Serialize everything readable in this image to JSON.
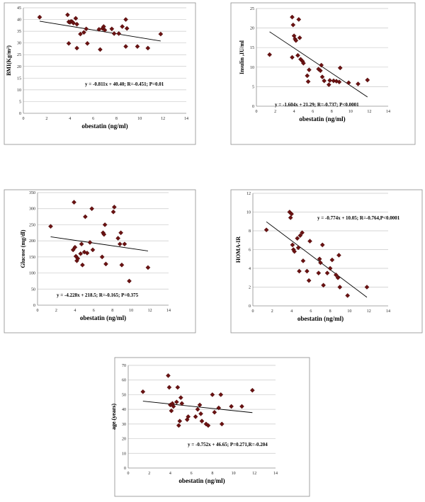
{
  "style": {
    "marker_color": "#6b1212",
    "trend_color": "#000000",
    "grid_color": "#c9c9c9"
  },
  "chart_data": [
    {
      "type": "scatter",
      "xlabel": "obestatin (ng/ml)",
      "ylabel": "BMI(Kg/m²)",
      "xlim": [
        0,
        14
      ],
      "ylim": [
        0,
        45
      ],
      "xticks": [
        "0",
        "2",
        "4",
        "6",
        "8",
        "10",
        "12",
        "14"
      ],
      "yticks": [
        "0",
        "5",
        "10",
        "15",
        "20",
        "25",
        "30",
        "35",
        "40",
        "45"
      ],
      "trendline": {
        "slope": -0.811,
        "intercept": 40.4
      },
      "equation": "y = -0.811x + 40.40; R=-0.451; P=0.01",
      "points": [
        [
          1.4,
          41
        ],
        [
          3.8,
          42
        ],
        [
          3.9,
          39
        ],
        [
          4.0,
          38.8
        ],
        [
          4.1,
          39.2
        ],
        [
          4.2,
          39
        ],
        [
          4.3,
          38.5
        ],
        [
          4.5,
          40.5
        ],
        [
          4.6,
          38
        ],
        [
          3.9,
          29.8
        ],
        [
          4.6,
          27.8
        ],
        [
          4.9,
          33.8
        ],
        [
          5.2,
          34.5
        ],
        [
          5.4,
          36
        ],
        [
          5.5,
          29.8
        ],
        [
          6.5,
          35.8
        ],
        [
          6.6,
          27.2
        ],
        [
          6.8,
          36.2
        ],
        [
          6.9,
          37
        ],
        [
          7.0,
          35.5
        ],
        [
          7.6,
          36
        ],
        [
          7.8,
          34
        ],
        [
          8.2,
          34
        ],
        [
          8.5,
          37
        ],
        [
          8.8,
          40
        ],
        [
          8.9,
          36.2
        ],
        [
          8.8,
          28.5
        ],
        [
          9.8,
          28.5
        ],
        [
          10.7,
          27.8
        ],
        [
          11.8,
          33.8
        ]
      ]
    },
    {
      "type": "scatter",
      "xlabel": "obestatin (ng/ml)",
      "ylabel": "Insulin ,IU/ml",
      "xlim": [
        0,
        14
      ],
      "ylim": [
        0,
        25
      ],
      "xticks": [
        "0",
        "2",
        "4",
        "6",
        "8",
        "10",
        "12",
        "14"
      ],
      "yticks": [
        "0",
        "5",
        "10",
        "15",
        "20",
        "25"
      ],
      "trendline": {
        "slope": -1.604,
        "intercept": 21.29
      },
      "equation": "y = -1.604x + 21.29; R=-0.737; P<0.0001",
      "points": [
        [
          1.4,
          13.2
        ],
        [
          3.8,
          22.8
        ],
        [
          3.9,
          20.8
        ],
        [
          4.0,
          18
        ],
        [
          4.1,
          17.2
        ],
        [
          4.2,
          16.8
        ],
        [
          3.8,
          12.5
        ],
        [
          4.4,
          13
        ],
        [
          4.5,
          22.2
        ],
        [
          4.6,
          17.5
        ],
        [
          4.7,
          12
        ],
        [
          4.9,
          11.5
        ],
        [
          5.0,
          11
        ],
        [
          5.4,
          7.8
        ],
        [
          5.5,
          6.3
        ],
        [
          5.6,
          9.3
        ],
        [
          6.6,
          9.5
        ],
        [
          6.8,
          9.1
        ],
        [
          6.9,
          10.5
        ],
        [
          7.0,
          7.5
        ],
        [
          7.2,
          6.5
        ],
        [
          7.7,
          5.5
        ],
        [
          7.8,
          6.6
        ],
        [
          8.2,
          6.5
        ],
        [
          8.5,
          6.4
        ],
        [
          8.8,
          6.2
        ],
        [
          8.9,
          9.8
        ],
        [
          9.8,
          6
        ],
        [
          10.8,
          5.7
        ],
        [
          11.8,
          6.7
        ]
      ]
    },
    {
      "type": "scatter",
      "xlabel": "obestatin (ng/ml)",
      "ylabel": "Glucose (mg/dl)",
      "xlim": [
        0,
        14
      ],
      "ylim": [
        0,
        350
      ],
      "xticks": [
        "0",
        "2",
        "4",
        "6",
        "8",
        "10",
        "12",
        "14"
      ],
      "yticks": [
        "0",
        "50",
        "100",
        "150",
        "200",
        "250",
        "300",
        "350"
      ],
      "trendline": {
        "slope": -4.228,
        "intercept": 218.5
      },
      "equation": "y = -4.228x + 218.5; R=-0.165; P=0.375",
      "points": [
        [
          1.4,
          245
        ],
        [
          3.8,
          172
        ],
        [
          3.9,
          320
        ],
        [
          4.0,
          180
        ],
        [
          4.1,
          152
        ],
        [
          4.2,
          138
        ],
        [
          4.3,
          145
        ],
        [
          4.6,
          160
        ],
        [
          4.7,
          190
        ],
        [
          4.8,
          125
        ],
        [
          5.0,
          165
        ],
        [
          5.1,
          275
        ],
        [
          5.3,
          162
        ],
        [
          5.6,
          195
        ],
        [
          5.8,
          300
        ],
        [
          5.9,
          172
        ],
        [
          6.9,
          150
        ],
        [
          7.0,
          225
        ],
        [
          7.1,
          220
        ],
        [
          7.2,
          250
        ],
        [
          7.3,
          128
        ],
        [
          8.1,
          290
        ],
        [
          8.2,
          305
        ],
        [
          8.6,
          208
        ],
        [
          8.8,
          190
        ],
        [
          8.9,
          225
        ],
        [
          9.0,
          125
        ],
        [
          9.3,
          190
        ],
        [
          9.8,
          75
        ],
        [
          11.8,
          117
        ]
      ]
    },
    {
      "type": "scatter",
      "xlabel": "obestatin (ng/ml)",
      "ylabel": "HOMA-IR",
      "xlim": [
        0,
        14
      ],
      "ylim": [
        0,
        12
      ],
      "xticks": [
        "0",
        "2",
        "4",
        "6",
        "8",
        "10",
        "12",
        "14"
      ],
      "yticks": [
        "0",
        "2",
        "4",
        "6",
        "8",
        "10",
        "12"
      ],
      "trendline": {
        "slope": -0.774,
        "intercept": 10.05
      },
      "equation": "y = -0.774x + 10.05; R=-0.764,P<0.0001",
      "points": [
        [
          1.4,
          8.1
        ],
        [
          3.8,
          10
        ],
        [
          3.9,
          9.4
        ],
        [
          4.0,
          9.8
        ],
        [
          4.1,
          6.5
        ],
        [
          4.2,
          6
        ],
        [
          4.3,
          5.8
        ],
        [
          4.6,
          7.2
        ],
        [
          4.7,
          6.2
        ],
        [
          4.8,
          3.7
        ],
        [
          4.9,
          7.5
        ],
        [
          5.1,
          7.8
        ],
        [
          5.2,
          4.8
        ],
        [
          5.6,
          3.7
        ],
        [
          5.8,
          2.7
        ],
        [
          5.9,
          6.9
        ],
        [
          6.8,
          3.5
        ],
        [
          6.9,
          5
        ],
        [
          7.0,
          4.6
        ],
        [
          7.2,
          6.5
        ],
        [
          7.3,
          2.2
        ],
        [
          7.7,
          3.5
        ],
        [
          8.0,
          4
        ],
        [
          8.2,
          4.9
        ],
        [
          8.6,
          3.3
        ],
        [
          8.8,
          3
        ],
        [
          8.9,
          5.4
        ],
        [
          9.0,
          2
        ],
        [
          9.8,
          1.1
        ],
        [
          11.8,
          2
        ]
      ]
    },
    {
      "type": "scatter",
      "xlabel": "obestatin (ng/ml)",
      "ylabel": "age (years)",
      "xlim": [
        0,
        14
      ],
      "ylim": [
        0,
        70
      ],
      "xticks": [
        "0",
        "2",
        "4",
        "6",
        "8",
        "10",
        "12",
        "14"
      ],
      "yticks": [
        "0",
        "10",
        "20",
        "30",
        "40",
        "50",
        "60",
        "70"
      ],
      "trendline": {
        "slope": -0.752,
        "intercept": 46.65
      },
      "equation": "y = -0.752x + 46.65; P=0.271,R=-0.204",
      "points": [
        [
          1.4,
          52
        ],
        [
          3.8,
          63
        ],
        [
          3.9,
          55
        ],
        [
          4.0,
          43
        ],
        [
          4.1,
          39
        ],
        [
          4.2,
          44
        ],
        [
          4.3,
          42
        ],
        [
          4.6,
          45
        ],
        [
          4.7,
          55
        ],
        [
          4.8,
          29
        ],
        [
          4.9,
          32
        ],
        [
          5.0,
          48
        ],
        [
          5.1,
          44
        ],
        [
          5.6,
          33
        ],
        [
          5.7,
          35
        ],
        [
          6.4,
          35
        ],
        [
          6.6,
          40
        ],
        [
          6.8,
          43
        ],
        [
          6.9,
          37
        ],
        [
          7.0,
          32
        ],
        [
          7.4,
          30
        ],
        [
          7.6,
          29
        ],
        [
          8.0,
          50
        ],
        [
          8.2,
          38
        ],
        [
          8.6,
          41
        ],
        [
          8.8,
          50
        ],
        [
          8.9,
          30
        ],
        [
          9.8,
          42
        ],
        [
          10.8,
          42
        ],
        [
          11.8,
          53
        ]
      ]
    }
  ]
}
